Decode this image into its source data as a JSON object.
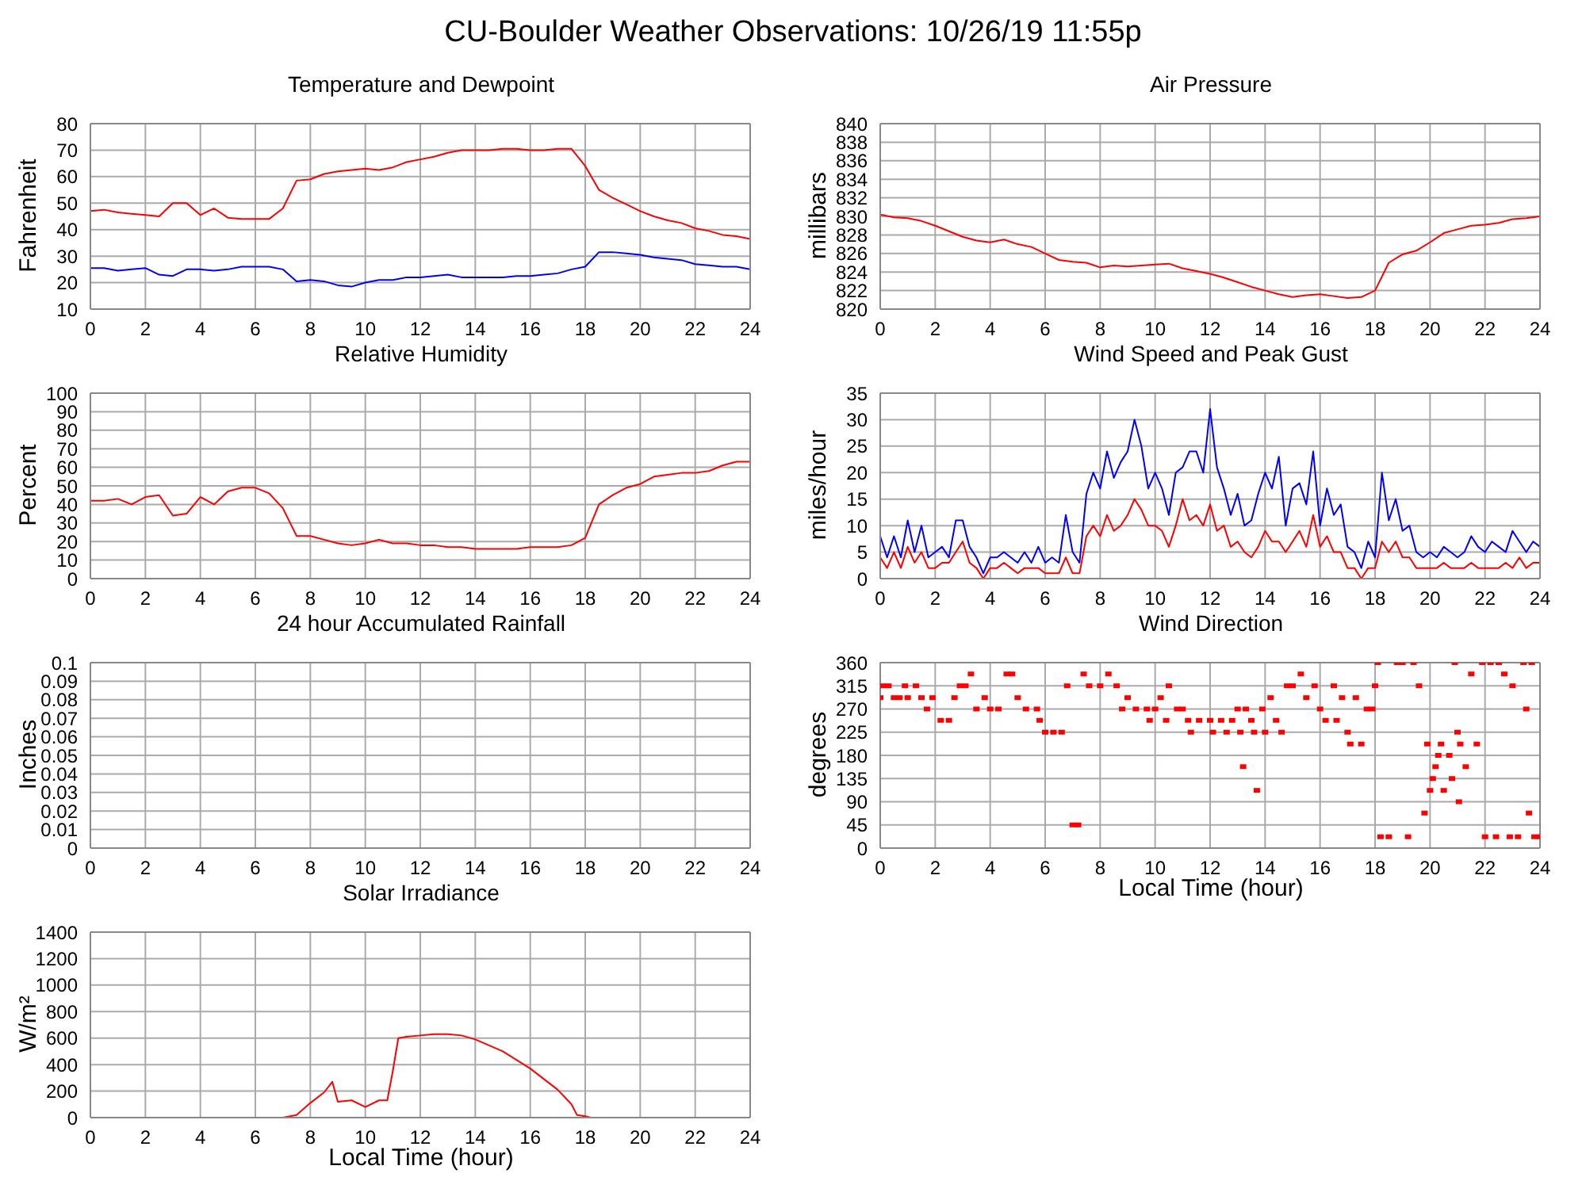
{
  "chart_data": [
    {
      "type": "line",
      "title": "Temperature and Dewpoint",
      "ylabel": "Fahrenheit",
      "annotations": [
        "CU-Boulder Weather Observations: 10/26/19 11:55p"
      ],
      "grid": true,
      "legend": false,
      "xlim": [
        0,
        24
      ],
      "xticks": [
        0,
        2,
        4,
        6,
        8,
        10,
        12,
        14,
        16,
        18,
        20,
        22,
        24
      ],
      "ylim": [
        10,
        80
      ],
      "yticks": [
        10,
        20,
        30,
        40,
        50,
        60,
        70,
        80
      ],
      "x": [
        0,
        0.5,
        1,
        1.5,
        2,
        2.5,
        3,
        3.5,
        4,
        4.5,
        5,
        5.5,
        6,
        6.5,
        7,
        7.5,
        8,
        8.5,
        9,
        9.5,
        10,
        10.5,
        11,
        11.5,
        12,
        12.5,
        13,
        13.5,
        14,
        14.5,
        15,
        15.5,
        16,
        16.5,
        17,
        17.5,
        18,
        18.5,
        19,
        19.5,
        20,
        20.5,
        21,
        21.5,
        22,
        22.5,
        23,
        23.5,
        24
      ],
      "series": [
        {
          "color": "#ff0000",
          "values": [
            47,
            47.5,
            46.5,
            46,
            45.5,
            45,
            50,
            50,
            45.5,
            48,
            44.5,
            44,
            44,
            44,
            48,
            58.5,
            59,
            61,
            62,
            62.5,
            63,
            62.5,
            63.5,
            65.5,
            66.5,
            67.5,
            69,
            70,
            70,
            70,
            70.5,
            70.5,
            70,
            70,
            70.5,
            70.5,
            64,
            55,
            52,
            49.5,
            47,
            45,
            43.5,
            42.5,
            40.5,
            39.5,
            38,
            37.5,
            36.5
          ]
        },
        {
          "color": "#0000ff",
          "values": [
            25.5,
            25.5,
            24.5,
            25,
            25.5,
            23,
            22.5,
            25,
            25,
            24.5,
            25,
            26,
            26,
            26,
            25,
            20.5,
            21,
            20.5,
            19,
            18.5,
            20,
            21,
            21,
            22,
            22,
            22.5,
            23,
            22,
            22,
            22,
            22,
            22.5,
            22.5,
            23,
            23.5,
            25,
            26,
            31.5,
            31.5,
            31,
            30.5,
            29.5,
            29,
            28.5,
            27,
            26.5,
            26,
            26,
            25
          ]
        }
      ]
    },
    {
      "type": "line",
      "title": "Air Pressure",
      "ylabel": "millibars",
      "grid": true,
      "legend": false,
      "xlim": [
        0,
        24
      ],
      "xticks": [
        0,
        2,
        4,
        6,
        8,
        10,
        12,
        14,
        16,
        18,
        20,
        22,
        24
      ],
      "ylim": [
        820,
        840
      ],
      "yticks": [
        820,
        822,
        824,
        826,
        828,
        830,
        832,
        834,
        836,
        838,
        840
      ],
      "x": [
        0,
        0.5,
        1,
        1.5,
        2,
        2.5,
        3,
        3.5,
        4,
        4.5,
        5,
        5.5,
        6,
        6.5,
        7,
        7.5,
        8,
        8.5,
        9,
        9.5,
        10,
        10.5,
        11,
        11.5,
        12,
        12.5,
        13,
        13.5,
        14,
        14.5,
        15,
        15.5,
        16,
        16.5,
        17,
        17.5,
        18,
        18.5,
        19,
        19.5,
        20,
        20.5,
        21,
        21.5,
        22,
        22.5,
        23,
        23.5,
        24
      ],
      "series": [
        {
          "color": "#ff0000",
          "values": [
            830.2,
            829.9,
            829.8,
            829.5,
            829,
            828.4,
            827.8,
            827.4,
            827.2,
            827.5,
            827,
            826.7,
            826,
            825.3,
            825.1,
            825,
            824.5,
            824.7,
            824.6,
            824.7,
            824.8,
            824.9,
            824.4,
            824.1,
            823.8,
            823.4,
            822.9,
            822.4,
            822,
            821.6,
            821.3,
            821.5,
            821.6,
            821.4,
            821.2,
            821.3,
            822,
            825,
            825.9,
            826.3,
            827.2,
            828.2,
            828.6,
            829,
            829.1,
            829.3,
            829.7,
            829.8,
            830
          ]
        }
      ]
    },
    {
      "type": "line",
      "title": "Relative Humidity",
      "ylabel": "Percent",
      "grid": true,
      "legend": false,
      "xlim": [
        0,
        24
      ],
      "xticks": [
        0,
        2,
        4,
        6,
        8,
        10,
        12,
        14,
        16,
        18,
        20,
        22,
        24
      ],
      "ylim": [
        0,
        100
      ],
      "yticks": [
        0,
        10,
        20,
        30,
        40,
        50,
        60,
        70,
        80,
        90,
        100
      ],
      "x": [
        0,
        0.5,
        1,
        1.5,
        2,
        2.5,
        3,
        3.5,
        4,
        4.5,
        5,
        5.5,
        6,
        6.5,
        7,
        7.5,
        8,
        8.5,
        9,
        9.5,
        10,
        10.5,
        11,
        11.5,
        12,
        12.5,
        13,
        13.5,
        14,
        14.5,
        15,
        15.5,
        16,
        16.5,
        17,
        17.5,
        18,
        18.5,
        19,
        19.5,
        20,
        20.5,
        21,
        21.5,
        22,
        22.5,
        23,
        23.5,
        24
      ],
      "series": [
        {
          "color": "#ff0000",
          "values": [
            42,
            42,
            43,
            40,
            44,
            45,
            34,
            35,
            44,
            40,
            47,
            49,
            49,
            46,
            38,
            23,
            23,
            21,
            19,
            18,
            19,
            21,
            19,
            19,
            18,
            18,
            17,
            17,
            16,
            16,
            16,
            16,
            17,
            17,
            17,
            18,
            22,
            40,
            45,
            49,
            51,
            55,
            56,
            57,
            57,
            58,
            61,
            63,
            63
          ]
        }
      ]
    },
    {
      "type": "line",
      "title": "Wind Speed and Peak Gust",
      "ylabel": "miles/hour",
      "grid": true,
      "legend": false,
      "xlim": [
        0,
        24
      ],
      "xticks": [
        0,
        2,
        4,
        6,
        8,
        10,
        12,
        14,
        16,
        18,
        20,
        22,
        24
      ],
      "ylim": [
        0,
        35
      ],
      "yticks": [
        0,
        5,
        10,
        15,
        20,
        25,
        30,
        35
      ],
      "x": [
        0,
        0.25,
        0.5,
        0.75,
        1,
        1.25,
        1.5,
        1.75,
        2,
        2.25,
        2.5,
        2.75,
        3,
        3.25,
        3.5,
        3.75,
        4,
        4.25,
        4.5,
        4.75,
        5,
        5.25,
        5.5,
        5.75,
        6,
        6.25,
        6.5,
        6.75,
        7,
        7.25,
        7.5,
        7.75,
        8,
        8.25,
        8.5,
        8.75,
        9,
        9.25,
        9.5,
        9.75,
        10,
        10.25,
        10.5,
        10.75,
        11,
        11.25,
        11.5,
        11.75,
        12,
        12.25,
        12.5,
        12.75,
        13,
        13.25,
        13.5,
        13.75,
        14,
        14.25,
        14.5,
        14.75,
        15,
        15.25,
        15.5,
        15.75,
        16,
        16.25,
        16.5,
        16.75,
        17,
        17.25,
        17.5,
        17.75,
        18,
        18.25,
        18.5,
        18.75,
        19,
        19.25,
        19.5,
        19.75,
        20,
        20.25,
        20.5,
        20.75,
        21,
        21.25,
        21.5,
        21.75,
        22,
        22.25,
        22.5,
        22.75,
        23,
        23.25,
        23.5,
        23.75,
        24
      ],
      "series": [
        {
          "color": "#0000ff",
          "values": [
            8,
            4,
            8,
            4,
            11,
            5,
            10,
            4,
            5,
            6,
            4,
            11,
            11,
            6,
            4,
            1,
            4,
            4,
            5,
            4,
            3,
            5,
            3,
            6,
            3,
            4,
            3,
            12,
            5,
            3,
            16,
            20,
            17,
            24,
            19,
            22,
            24,
            30,
            25,
            17,
            20,
            17,
            12,
            20,
            21,
            24,
            24,
            20,
            32,
            21,
            17,
            12,
            16,
            10,
            11,
            16,
            20,
            17,
            23,
            10,
            17,
            18,
            14,
            24,
            10,
            17,
            12,
            14,
            6,
            5,
            2,
            7,
            4,
            20,
            11,
            15,
            9,
            10,
            5,
            4,
            5,
            4,
            6,
            5,
            4,
            5,
            8,
            6,
            5,
            7,
            6,
            5,
            9,
            7,
            5,
            7,
            6
          ]
        },
        {
          "color": "#ff0000",
          "values": [
            4,
            2,
            5,
            2,
            6,
            3,
            5,
            2,
            2,
            3,
            3,
            5,
            7,
            3,
            2,
            0,
            2,
            2,
            3,
            2,
            1,
            2,
            2,
            2,
            1,
            1,
            1,
            4,
            1,
            1,
            8,
            10,
            8,
            12,
            9,
            10,
            12,
            15,
            13,
            10,
            10,
            9,
            6,
            10,
            15,
            11,
            12,
            10,
            14,
            9,
            10,
            6,
            7,
            5,
            4,
            6,
            9,
            7,
            7,
            5,
            7,
            9,
            6,
            12,
            6,
            8,
            5,
            5,
            2,
            2,
            0,
            2,
            2,
            7,
            5,
            7,
            4,
            4,
            2,
            2,
            2,
            2,
            3,
            2,
            2,
            2,
            3,
            2,
            2,
            2,
            2,
            3,
            2,
            4,
            2,
            3,
            3
          ]
        }
      ]
    },
    {
      "type": "line",
      "title": "24 hour Accumulated Rainfall",
      "ylabel": "Inches",
      "grid": true,
      "legend": false,
      "xlim": [
        0,
        24
      ],
      "xticks": [
        0,
        2,
        4,
        6,
        8,
        10,
        12,
        14,
        16,
        18,
        20,
        22,
        24
      ],
      "ylim": [
        0,
        0.1
      ],
      "yticks": [
        0,
        0.01,
        0.02,
        0.03,
        0.04,
        0.05,
        0.06,
        0.07,
        0.08,
        0.09,
        0.1
      ]
    },
    {
      "type": "scatter",
      "title": "Wind Direction",
      "ylabel": "degrees",
      "xlabel": "Local Time (hour)",
      "grid": true,
      "legend": false,
      "marker": "square",
      "xlim": [
        0,
        24
      ],
      "xticks": [
        0,
        2,
        4,
        6,
        8,
        10,
        12,
        14,
        16,
        18,
        20,
        22,
        24
      ],
      "ylim": [
        0,
        360
      ],
      "yticks": [
        0,
        45,
        90,
        135,
        180,
        225,
        270,
        315,
        360
      ],
      "x": [
        0,
        0.1,
        0.3,
        0.5,
        0.7,
        0.9,
        1,
        1.3,
        1.5,
        1.7,
        1.9,
        2.2,
        2.5,
        2.7,
        2.9,
        3.1,
        3.3,
        3.5,
        3.8,
        4,
        4.3,
        4.6,
        4.8,
        5,
        5.3,
        5.7,
        5.8,
        6,
        6.3,
        6.6,
        6.8,
        7,
        7.2,
        7.4,
        7.6,
        8,
        8.3,
        8.6,
        8.8,
        9,
        9.3,
        9.7,
        9.8,
        10,
        10.2,
        10.4,
        10.5,
        10.8,
        11,
        11.2,
        11.3,
        11.6,
        12,
        12.1,
        12.4,
        12.6,
        12.8,
        13,
        13.1,
        13.2,
        13.3,
        13.5,
        13.6,
        13.7,
        13.9,
        14,
        14.2,
        14.4,
        14.6,
        14.8,
        15,
        15.3,
        15.5,
        15.8,
        16,
        16.2,
        16.5,
        16.6,
        16.8,
        17,
        17.1,
        17.3,
        17.5,
        17.7,
        17.9,
        18,
        18.1,
        18.2,
        18.5,
        18.8,
        19,
        19.2,
        19.4,
        19.6,
        19.8,
        19.9,
        20,
        20.1,
        20.2,
        20.3,
        20.4,
        20.5,
        20.7,
        20.8,
        20.9,
        21,
        21.05,
        21.1,
        21.3,
        21.5,
        21.7,
        21.9,
        22,
        22.2,
        22.4,
        22.5,
        22.7,
        22.9,
        23,
        23.2,
        23.4,
        23.5,
        23.6,
        23.7,
        23.8,
        24
      ],
      "values": [
        292,
        315,
        315,
        292,
        292,
        315,
        292,
        315,
        292,
        270,
        292,
        248,
        248,
        292,
        315,
        315,
        338,
        270,
        292,
        270,
        270,
        338,
        338,
        292,
        270,
        270,
        248,
        225,
        225,
        225,
        315,
        45,
        45,
        338,
        315,
        315,
        338,
        315,
        270,
        292,
        270,
        270,
        248,
        270,
        292,
        248,
        315,
        270,
        270,
        248,
        225,
        248,
        248,
        225,
        248,
        225,
        248,
        270,
        225,
        158,
        270,
        248,
        225,
        112,
        270,
        225,
        292,
        248,
        225,
        315,
        315,
        338,
        292,
        315,
        270,
        248,
        315,
        248,
        292,
        225,
        202,
        292,
        202,
        270,
        270,
        315,
        360,
        22,
        22,
        360,
        360,
        22,
        360,
        315,
        68,
        202,
        112,
        135,
        158,
        180,
        202,
        112,
        180,
        135,
        360,
        225,
        90,
        202,
        158,
        338,
        202,
        360,
        22,
        360,
        22,
        360,
        338,
        22,
        315,
        22,
        360,
        270,
        68,
        360,
        22,
        22
      ],
      "color": "#ff0000"
    },
    {
      "type": "line",
      "title": "Solar Irradiance",
      "ylabel": "W/m²",
      "xlabel": "Local Time (hour)",
      "grid": true,
      "legend": false,
      "xlim": [
        0,
        24
      ],
      "xticks": [
        0,
        2,
        4,
        6,
        8,
        10,
        12,
        14,
        16,
        18,
        20,
        22,
        24
      ],
      "ylim": [
        0,
        1400
      ],
      "yticks": [
        0,
        200,
        400,
        600,
        800,
        1000,
        1200,
        1400
      ],
      "x": [
        0,
        7,
        7.5,
        8,
        8.5,
        8.8,
        9,
        9.5,
        10,
        10.5,
        10.8,
        11,
        11.2,
        11.5,
        12,
        12.5,
        13,
        13.5,
        14,
        15,
        16,
        17,
        17.5,
        17.7,
        18,
        18.2,
        24
      ],
      "color": "#ff0000",
      "values": [
        0,
        0,
        20,
        110,
        190,
        270,
        120,
        130,
        80,
        130,
        130,
        350,
        600,
        610,
        620,
        630,
        630,
        620,
        590,
        500,
        370,
        210,
        100,
        20,
        10,
        0,
        0
      ]
    }
  ]
}
